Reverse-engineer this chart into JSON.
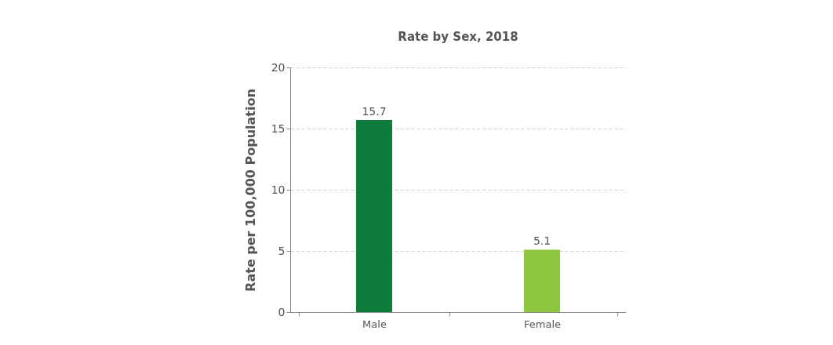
{
  "chart_data": {
    "type": "bar",
    "title": "Rate by Sex, 2018",
    "ylabel": "Rate per 100,000 Population",
    "categories": [
      "Male",
      "Female"
    ],
    "values": [
      15.7,
      5.1
    ],
    "colors": [
      "#0e7c3a",
      "#8dc63f"
    ],
    "ylim": [
      0,
      20
    ],
    "yticks": [
      0,
      5,
      10,
      15,
      20
    ],
    "grid": "y",
    "data_labels": true
  }
}
